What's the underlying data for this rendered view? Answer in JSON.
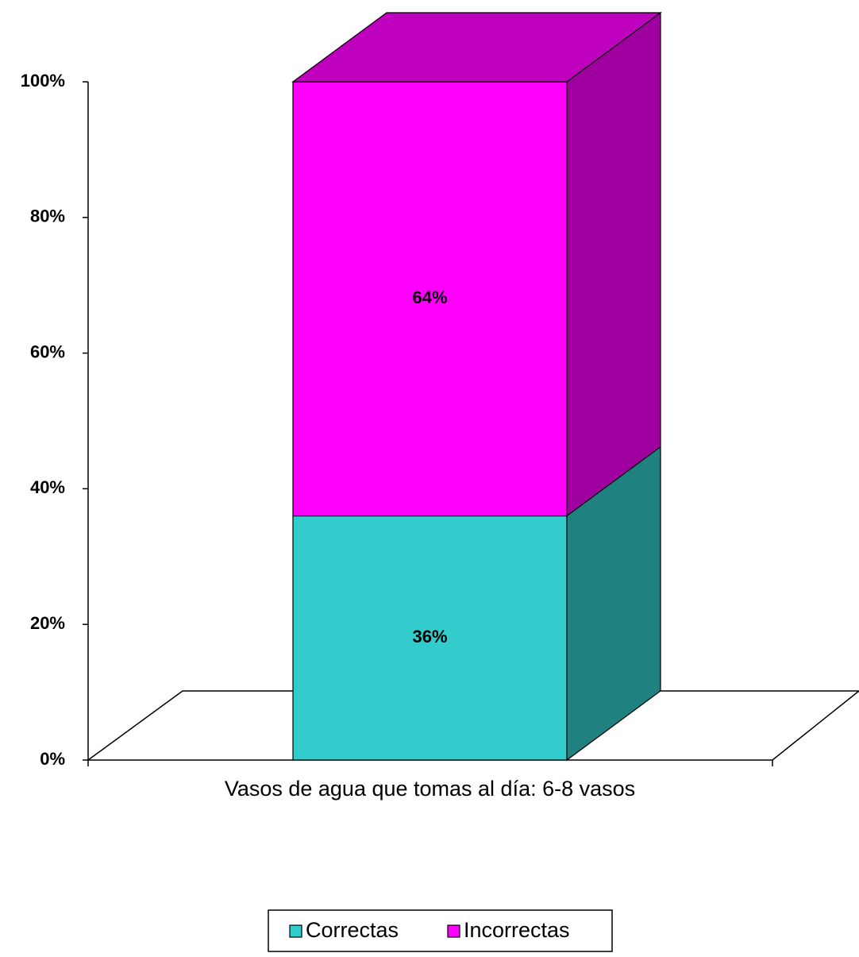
{
  "chart_data": {
    "type": "bar",
    "stacked": true,
    "three_d": true,
    "categories": [
      "Vasos de agua que tomas al día: 6-8 vasos"
    ],
    "series": [
      {
        "name": "Correctas",
        "color": "#33cccc",
        "values": [
          36
        ],
        "value_labels": [
          "36%"
        ]
      },
      {
        "name": "Incorrectas",
        "color": "#ff00ff",
        "values": [
          64
        ],
        "value_labels": [
          "64%"
        ]
      }
    ],
    "ylim": [
      0,
      100
    ],
    "yticks": [
      {
        "value": 0,
        "label": "0%"
      },
      {
        "value": 20,
        "label": "20%"
      },
      {
        "value": 40,
        "label": "40%"
      },
      {
        "value": 60,
        "label": "60%"
      },
      {
        "value": 80,
        "label": "80%"
      },
      {
        "value": 100,
        "label": "100%"
      }
    ],
    "grid": false,
    "legend": "bottom"
  }
}
